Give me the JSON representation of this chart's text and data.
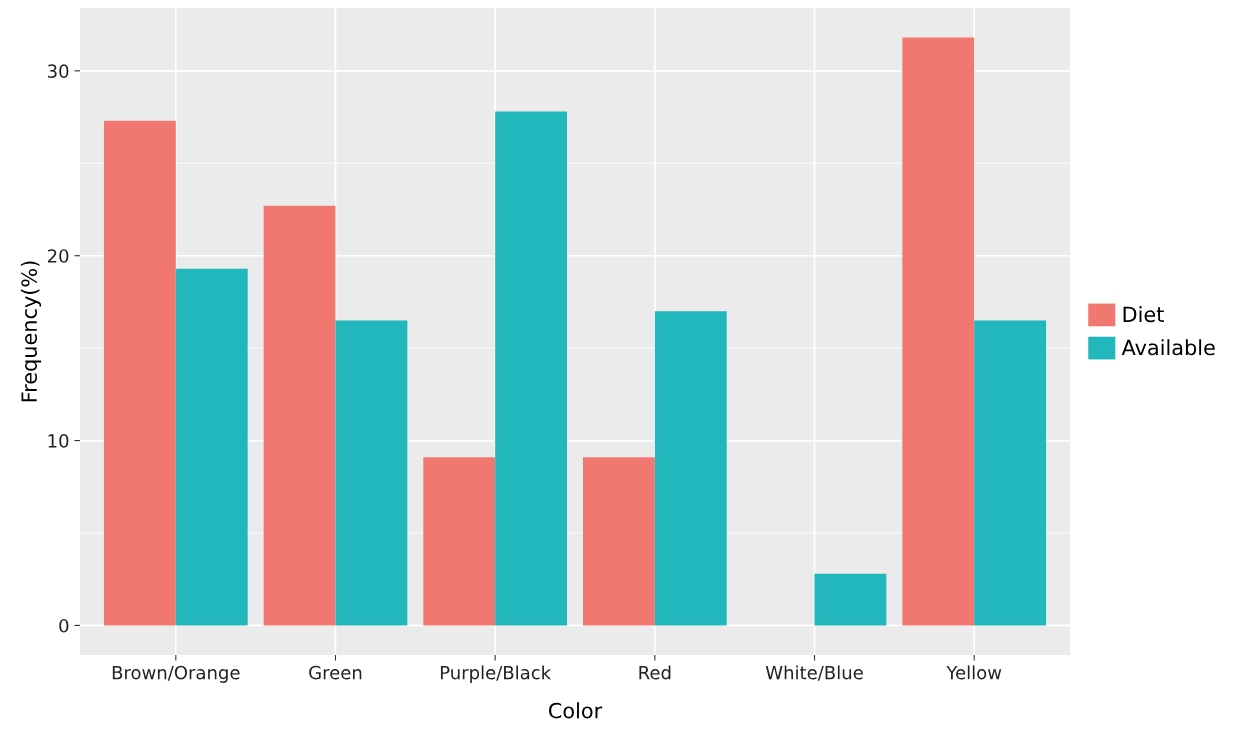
{
  "chart_data": {
    "type": "bar",
    "xlabel": "Color",
    "ylabel": "Frequency(%)",
    "categories": [
      "Brown/Orange",
      "Green",
      "Purple/Black",
      "Red",
      "White/Blue",
      "Yellow"
    ],
    "series": [
      {
        "name": "Diet",
        "color": "#f07870",
        "values": [
          27.3,
          22.7,
          9.1,
          9.1,
          0,
          31.8
        ]
      },
      {
        "name": "Available",
        "color": "#22b6bd",
        "values": [
          19.3,
          16.5,
          27.8,
          17.0,
          2.8,
          16.5
        ]
      }
    ],
    "ylim": [
      -1.6,
      33.4
    ],
    "yticks": [
      0,
      10,
      20,
      30
    ],
    "grid": true,
    "legend": "right"
  }
}
